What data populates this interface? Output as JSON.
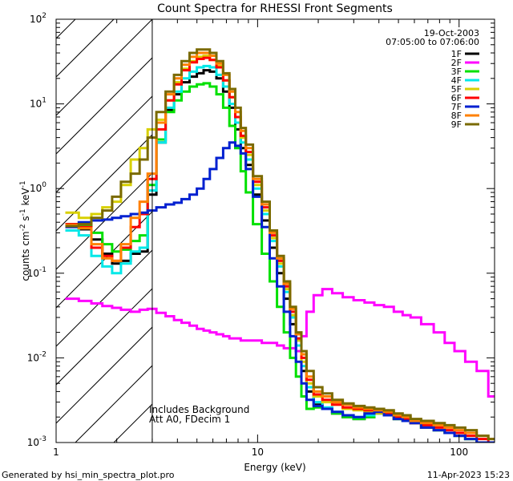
{
  "chart_data": {
    "type": "line",
    "title": "Count Spectra for RHESSI Front Segments",
    "xlabel": "Energy (keV)",
    "ylabel": "counts cm^-2 s^-1 keV^-1",
    "ylabel_parts": {
      "a": "counts cm",
      "b": "-2",
      "c": " s",
      "d": "-1",
      "e": " keV",
      "f": "-1"
    },
    "xscale": "log",
    "yscale": "log",
    "xlim": [
      1,
      150
    ],
    "ylim": [
      0.001,
      100
    ],
    "x_ticks": [
      {
        "value": 1,
        "label": "1"
      },
      {
        "value": 10,
        "label": "10"
      },
      {
        "value": 100,
        "label": "100"
      }
    ],
    "y_ticks": [
      {
        "value": 0.001,
        "base": "10",
        "exp": "-3"
      },
      {
        "value": 0.01,
        "base": "10",
        "exp": "-2"
      },
      {
        "value": 0.1,
        "base": "10",
        "exp": "-1"
      },
      {
        "value": 1,
        "base": "10",
        "exp": "0"
      },
      {
        "value": 10,
        "base": "10",
        "exp": "1"
      },
      {
        "value": 100,
        "base": "10",
        "exp": "2"
      }
    ],
    "hatch_region": {
      "x_min": 1,
      "x_max": 3
    },
    "date": "19-Oct-2003",
    "time_range": "07:05:00 to 07:06:00",
    "annotations": [
      "Includes Background",
      "Att A0, FDecim 1"
    ],
    "energy_keV": [
      1.2,
      1.4,
      1.6,
      1.8,
      2,
      2.2,
      2.5,
      2.7,
      3,
      3.3,
      3.7,
      4,
      4.4,
      4.8,
      5.2,
      5.6,
      6,
      6.5,
      7,
      7.5,
      8,
      8.5,
      9,
      10,
      11,
      12,
      13,
      14,
      15,
      16,
      17,
      18,
      20,
      22,
      25,
      28,
      32,
      36,
      40,
      45,
      50,
      55,
      60,
      70,
      80,
      90,
      100,
      115,
      130,
      150
    ],
    "legend_position": "top-right",
    "series": [
      {
        "name": "1F",
        "color": "#000000",
        "values": [
          0.36,
          0.33,
          0.25,
          0.17,
          0.13,
          0.14,
          0.17,
          0.18,
          0.85,
          3.5,
          8.5,
          13,
          18,
          21,
          23,
          25,
          24,
          20,
          14,
          9,
          5,
          3,
          1.9,
          0.85,
          0.42,
          0.2,
          0.1,
          0.05,
          0.025,
          0.012,
          0.007,
          0.004,
          0.0028,
          0.0025,
          0.0022,
          0.002,
          0.0019,
          0.002,
          0.0022,
          0.0021,
          0.0019,
          0.0018,
          0.0017,
          0.0015,
          0.0014,
          0.0013,
          0.0012,
          0.0011,
          0.001,
          0.001
        ]
      },
      {
        "name": "2F",
        "color": "#ff00ff",
        "values": [
          0.05,
          0.047,
          0.044,
          0.041,
          0.039,
          0.037,
          0.035,
          0.037,
          0.038,
          0.034,
          0.031,
          0.028,
          0.026,
          0.024,
          0.022,
          0.021,
          0.02,
          0.019,
          0.018,
          0.017,
          0.017,
          0.016,
          0.016,
          0.016,
          0.015,
          0.015,
          0.014,
          0.013,
          0.013,
          0.012,
          0.018,
          0.035,
          0.055,
          0.065,
          0.058,
          0.052,
          0.048,
          0.045,
          0.042,
          0.04,
          0.035,
          0.032,
          0.03,
          0.025,
          0.02,
          0.015,
          0.012,
          0.009,
          0.007,
          0.0035
        ]
      },
      {
        "name": "3F",
        "color": "#00e000",
        "values": [
          0.38,
          0.36,
          0.3,
          0.22,
          0.18,
          0.19,
          0.24,
          0.28,
          1.1,
          3.8,
          8,
          11,
          14,
          16,
          17,
          17.5,
          16,
          13,
          9,
          5.5,
          3,
          1.6,
          0.9,
          0.38,
          0.17,
          0.08,
          0.04,
          0.02,
          0.01,
          0.006,
          0.0035,
          0.0025,
          0.0026,
          0.0025,
          0.0022,
          0.002,
          0.0019,
          0.002,
          0.0022,
          0.0021,
          0.0019,
          0.0018,
          0.0017,
          0.0015,
          0.0014,
          0.0013,
          0.0012,
          0.0011,
          0.001,
          0.001
        ]
      },
      {
        "name": "4F",
        "color": "#00e8e8",
        "values": [
          0.32,
          0.28,
          0.16,
          0.12,
          0.1,
          0.13,
          0.18,
          0.2,
          0.95,
          3.5,
          9,
          14,
          20,
          24,
          27,
          28,
          27,
          22,
          16,
          10,
          6,
          3.5,
          2.2,
          1,
          0.5,
          0.24,
          0.12,
          0.06,
          0.03,
          0.014,
          0.008,
          0.0045,
          0.003,
          0.0026,
          0.0023,
          0.0021,
          0.002,
          0.0021,
          0.0022,
          0.0021,
          0.0019,
          0.0018,
          0.0017,
          0.0015,
          0.0014,
          0.0013,
          0.0012,
          0.0011,
          0.001,
          0.001
        ]
      },
      {
        "name": "5F",
        "color": "#d8d000",
        "values": [
          0.52,
          0.45,
          0.5,
          0.6,
          0.7,
          1.1,
          2.2,
          3,
          5,
          6.5,
          11,
          18,
          26,
          32,
          36,
          37,
          33,
          28,
          19,
          12,
          7,
          4,
          2.5,
          1.1,
          0.55,
          0.26,
          0.13,
          0.065,
          0.032,
          0.016,
          0.009,
          0.005,
          0.0035,
          0.003,
          0.0028,
          0.0025,
          0.0024,
          0.0023,
          0.0022,
          0.0021,
          0.0019,
          0.0018,
          0.0017,
          0.0015,
          0.0014,
          0.0013,
          0.0012,
          0.0011,
          0.001,
          0.001
        ]
      },
      {
        "name": "6F",
        "color": "#ff0000",
        "values": [
          0.38,
          0.35,
          0.2,
          0.16,
          0.14,
          0.2,
          0.35,
          0.5,
          1.3,
          5,
          11,
          17,
          25,
          31,
          34,
          35,
          33,
          27,
          19,
          12,
          7,
          4.2,
          2.7,
          1.2,
          0.6,
          0.28,
          0.14,
          0.07,
          0.035,
          0.017,
          0.01,
          0.0055,
          0.0037,
          0.0032,
          0.0028,
          0.0026,
          0.0025,
          0.0024,
          0.0023,
          0.0022,
          0.002,
          0.0019,
          0.0017,
          0.0016,
          0.0015,
          0.0014,
          0.0013,
          0.0012,
          0.0011,
          0.001
        ]
      },
      {
        "name": "7F",
        "color": "#0020d0",
        "values": [
          0.35,
          0.4,
          0.42,
          0.43,
          0.45,
          0.47,
          0.5,
          0.52,
          0.55,
          0.6,
          0.65,
          0.68,
          0.75,
          0.85,
          1,
          1.3,
          1.7,
          2.3,
          3,
          3.5,
          3.2,
          2.6,
          1.7,
          0.8,
          0.35,
          0.15,
          0.07,
          0.035,
          0.018,
          0.009,
          0.005,
          0.0032,
          0.0027,
          0.0025,
          0.0023,
          0.0021,
          0.002,
          0.0022,
          0.0023,
          0.0021,
          0.0019,
          0.0018,
          0.0017,
          0.0015,
          0.0014,
          0.0013,
          0.0012,
          0.0011,
          0.001,
          0.001
        ]
      },
      {
        "name": "8F",
        "color": "#ff8000",
        "values": [
          0.37,
          0.34,
          0.22,
          0.15,
          0.14,
          0.22,
          0.45,
          0.7,
          1.5,
          6,
          13,
          20,
          29,
          36,
          40,
          40,
          37,
          30,
          22,
          14,
          8,
          4.8,
          3,
          1.3,
          0.65,
          0.3,
          0.15,
          0.075,
          0.038,
          0.019,
          0.011,
          0.006,
          0.004,
          0.0035,
          0.003,
          0.0028,
          0.0026,
          0.0025,
          0.0024,
          0.0023,
          0.0021,
          0.002,
          0.0018,
          0.0017,
          0.0016,
          0.0015,
          0.0014,
          0.0013,
          0.0012,
          0.0011
        ]
      },
      {
        "name": "9F",
        "color": "#7a6a00",
        "values": [
          0.36,
          0.38,
          0.45,
          0.55,
          0.8,
          1.2,
          1.5,
          2.2,
          4,
          8,
          14,
          22,
          32,
          40,
          44,
          44,
          40,
          32,
          23,
          15,
          9,
          5.2,
          3.3,
          1.4,
          0.7,
          0.32,
          0.16,
          0.08,
          0.04,
          0.02,
          0.012,
          0.007,
          0.0045,
          0.0038,
          0.0032,
          0.0029,
          0.0027,
          0.0026,
          0.0025,
          0.0024,
          0.0022,
          0.0021,
          0.0019,
          0.0018,
          0.0017,
          0.0016,
          0.0015,
          0.0014,
          0.0012,
          0.0011
        ]
      }
    ]
  },
  "footer": {
    "generated_by": "Generated by hsi_min_spectra_plot.pro",
    "timestamp": "11-Apr-2023 15:23"
  }
}
